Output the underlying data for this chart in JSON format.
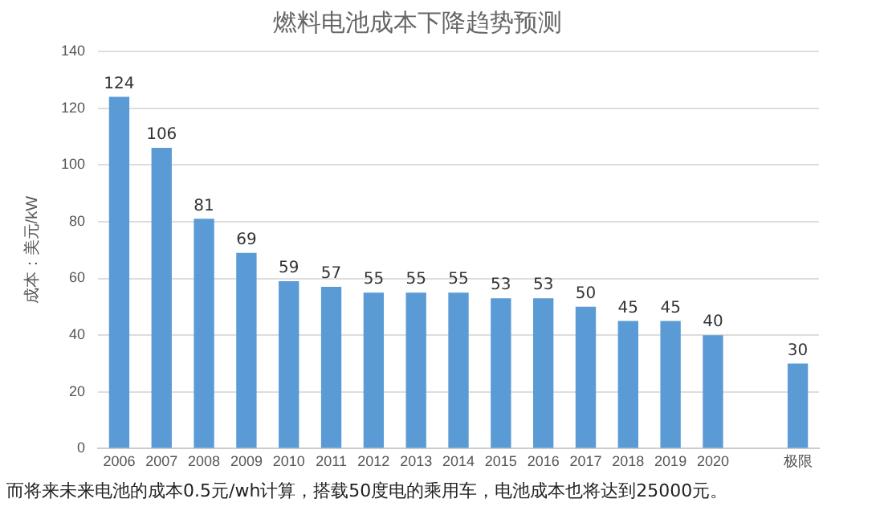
{
  "chart_data": {
    "type": "bar",
    "title": "燃料电池成本下降趋势预测",
    "ylabel": "成本：美元/kW",
    "categories": [
      "2006",
      "2007",
      "2008",
      "2009",
      "2010",
      "2011",
      "2012",
      "2013",
      "2014",
      "2015",
      "2016",
      "2017",
      "2018",
      "2019",
      "2020",
      null,
      "极限"
    ],
    "values": [
      124,
      106,
      81,
      69,
      59,
      57,
      55,
      55,
      55,
      53,
      53,
      50,
      45,
      45,
      40,
      null,
      30
    ],
    "color": "#5b9bd5",
    "ylim": [
      0,
      140
    ],
    "yticks": [
      0,
      20,
      40,
      60,
      80,
      100,
      120,
      140
    ],
    "grid": "y",
    "data_labels": true,
    "annotations": [
      "而将来未来电池的成本0.5元/wh计算，搭载50度电的乘用车，电池成本也将达到25000元。"
    ]
  }
}
